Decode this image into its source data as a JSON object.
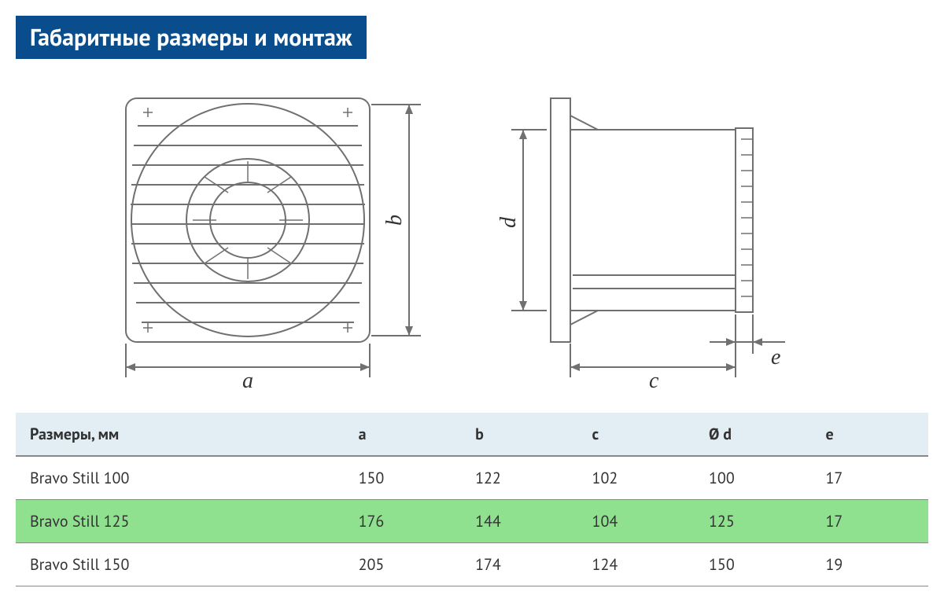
{
  "title": "Габаритные размеры и монтаж",
  "colors": {
    "header_bg": "#0a4d8c",
    "header_text": "#ffffff",
    "table_head_bg": "#e2eef3",
    "row_highlight_bg": "#8fe08f",
    "line_color": "#707070",
    "divider_color": "#888888",
    "text_color": "#333333"
  },
  "diagram": {
    "front": {
      "labels": [
        "a",
        "b"
      ]
    },
    "side": {
      "labels": [
        "c",
        "d",
        "e"
      ]
    }
  },
  "table": {
    "columns": [
      "Размеры, мм",
      "a",
      "b",
      "c",
      "Ø d",
      "e"
    ],
    "rows": [
      {
        "cells": [
          "Bravo Still 100",
          "150",
          "122",
          "102",
          "100",
          "17"
        ],
        "highlight": false
      },
      {
        "cells": [
          "Bravo Still 125",
          "176",
          "144",
          "104",
          "125",
          "17"
        ],
        "highlight": true
      },
      {
        "cells": [
          "Bravo Still 150",
          "205",
          "174",
          "124",
          "150",
          "19"
        ],
        "highlight": false
      }
    ]
  }
}
